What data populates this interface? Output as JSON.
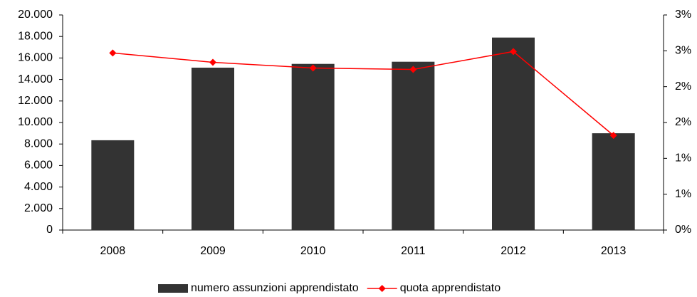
{
  "chart_data": {
    "type": "bar_line",
    "categories": [
      "2008",
      "2009",
      "2010",
      "2011",
      "2012",
      "2013"
    ],
    "series": [
      {
        "name": "numero assunzioni apprendistato",
        "type": "bar",
        "color": "#333333",
        "values": [
          8350,
          15100,
          15450,
          15650,
          17900,
          9000
        ]
      },
      {
        "name": "quota apprendistato",
        "type": "line",
        "axis": "y2",
        "color": "#ff0000",
        "values": [
          2.47,
          2.34,
          2.26,
          2.24,
          2.49,
          1.32
        ]
      }
    ],
    "ylim": [
      0,
      20000
    ],
    "yticks": [
      0,
      {
        "value": 2000,
        "label": "2.000"
      },
      {
        "value": 4000,
        "label": "4.000"
      },
      {
        "value": 6000,
        "label": "6.000"
      },
      {
        "value": 8000,
        "label": "8.000"
      },
      {
        "value": 10000,
        "label": "10.000"
      },
      {
        "value": 12000,
        "label": "12.000"
      },
      {
        "value": 14000,
        "label": "14.000"
      },
      {
        "value": 16000,
        "label": "16.000"
      },
      {
        "value": 18000,
        "label": "18.000"
      },
      {
        "value": 20000,
        "label": "20.000"
      }
    ],
    "y2lim": [
      0,
      3
    ],
    "y2ticks": [
      {
        "value": 0,
        "label": "0%"
      },
      {
        "value": 0.5,
        "label": "1%"
      },
      {
        "value": 1,
        "label": "1%"
      },
      {
        "value": 1.5,
        "label": "2%"
      },
      {
        "value": 2,
        "label": "2%"
      },
      {
        "value": 2.5,
        "label": "3%"
      },
      {
        "value": 3,
        "label": "3%"
      }
    ],
    "legend": "bottom"
  }
}
